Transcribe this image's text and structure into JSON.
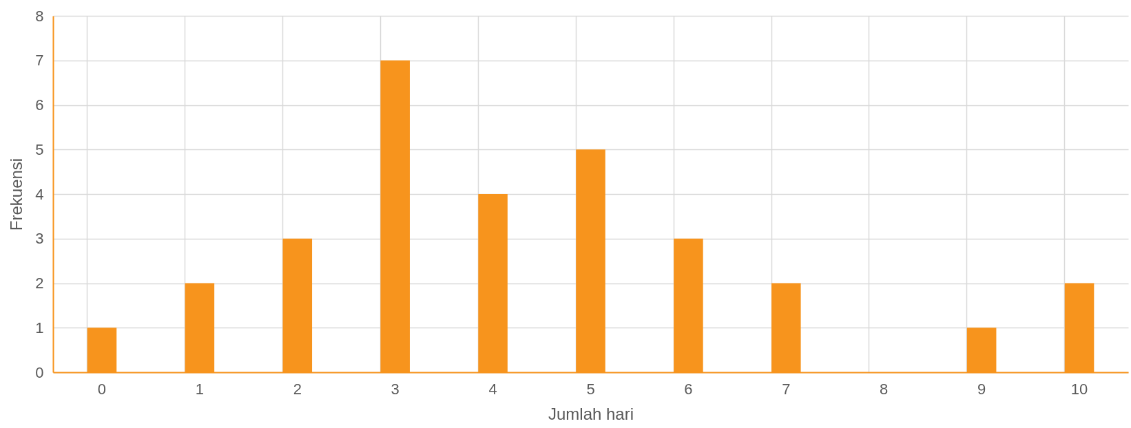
{
  "chart_data": {
    "type": "bar",
    "xlabel": "Jumlah hari",
    "ylabel": "Frekuensi",
    "categories": [
      "0",
      "1",
      "2",
      "3",
      "4",
      "5",
      "6",
      "7",
      "8",
      "9",
      "10"
    ],
    "values": [
      1,
      2,
      3,
      7,
      4,
      5,
      3,
      2,
      0,
      1,
      2
    ],
    "color": "#f7941d",
    "ylim": [
      0,
      8
    ],
    "yticks": [
      0,
      1,
      2,
      3,
      4,
      5,
      6,
      7,
      8
    ],
    "grid": true
  }
}
